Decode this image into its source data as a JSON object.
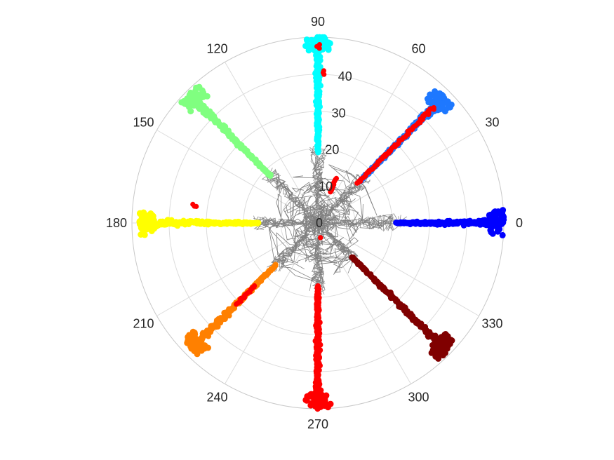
{
  "chart_data": {
    "type": "scatter",
    "coordinate_system": "polar",
    "title": "",
    "theta_ticks": [
      "0",
      "30",
      "60",
      "90",
      "120",
      "150",
      "180",
      "210",
      "240",
      "270",
      "300",
      "330"
    ],
    "r_ticks": [
      "0",
      "10",
      "20",
      "30",
      "40"
    ],
    "rlim": [
      0,
      50
    ],
    "grid": true,
    "legend": "none",
    "colors": {
      "trace": "#808080",
      "marker": "#ff0000",
      "arm_0": "#0000ff",
      "arm_45": "#1e78ff",
      "arm_90": "#00ffff",
      "arm_135": "#80ff80",
      "arm_180": "#ffff00",
      "arm_225": "#ff8000",
      "arm_270": "#ff0000",
      "arm_315": "#800000"
    },
    "series": [
      {
        "theta_deg": 0,
        "r_start": 21,
        "r_end": 50,
        "color": "#0000ff"
      },
      {
        "theta_deg": 45,
        "r_start": 16,
        "r_end": 48,
        "color": "#1e78ff"
      },
      {
        "theta_deg": 90,
        "r_start": 19,
        "r_end": 50,
        "color": "#00ffff"
      },
      {
        "theta_deg": 135,
        "r_start": 18,
        "r_end": 49,
        "color": "#80ff80"
      },
      {
        "theta_deg": 180,
        "r_start": 16,
        "r_end": 48,
        "color": "#ffff00"
      },
      {
        "theta_deg": 225,
        "r_start": 16,
        "r_end": 48,
        "color": "#ff8000"
      },
      {
        "theta_deg": 270,
        "r_start": 17,
        "r_end": 50,
        "color": "#ff0000"
      },
      {
        "theta_deg": 315,
        "r_start": 13,
        "r_end": 49,
        "color": "#800000"
      }
    ],
    "red_markers": [
      {
        "theta_deg": 45,
        "r_start": 15,
        "r_end": 44
      },
      {
        "theta_deg": 68,
        "r_start": 9,
        "r_end": 13
      },
      {
        "theta_deg": 172,
        "r_start": 33,
        "r_end": 34
      },
      {
        "theta_deg": 225,
        "r_start": 24,
        "r_end": 31
      },
      {
        "theta_deg": 88,
        "r_start": 40,
        "r_end": 41
      },
      {
        "theta_deg": 90,
        "r_start": 47,
        "r_end": 48
      },
      {
        "theta_deg": 280,
        "r_start": 4,
        "r_end": 4
      }
    ]
  }
}
